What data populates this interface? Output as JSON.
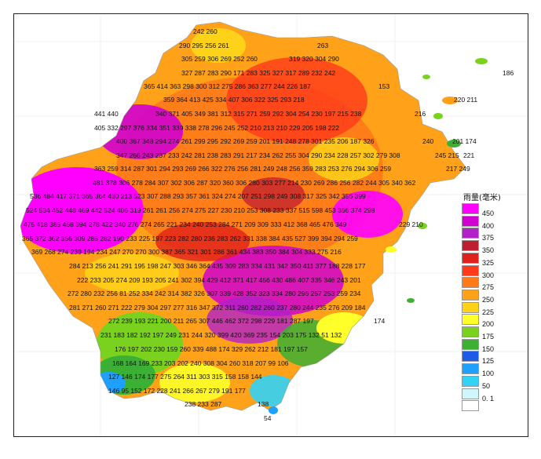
{
  "legend": {
    "title": "雨量(毫米)",
    "bins": [
      {
        "label": "450",
        "color": "#ff00ff"
      },
      {
        "label": "400",
        "color": "#d100d1"
      },
      {
        "label": "375",
        "color": "#b220c8"
      },
      {
        "label": "350",
        "color": "#bf1e2e"
      },
      {
        "label": "325",
        "color": "#e0201a"
      },
      {
        "label": "300",
        "color": "#ff3a1a"
      },
      {
        "label": "275",
        "color": "#ff7a1a"
      },
      {
        "label": "250",
        "color": "#ffa21a"
      },
      {
        "label": "225",
        "color": "#ffd21a"
      },
      {
        "label": "200",
        "color": "#ffff2a"
      },
      {
        "label": "175",
        "color": "#7ad11e"
      },
      {
        "label": "150",
        "color": "#3cb035"
      },
      {
        "label": "125",
        "color": "#1e5ae6"
      },
      {
        "label": "100",
        "color": "#1ea0ff"
      },
      {
        "label": "50",
        "color": "#32d2f5"
      },
      {
        "label": "0. 1",
        "color": "#cff7fb"
      },
      {
        "label": "",
        "color": "#ffffff"
      }
    ]
  },
  "stations": [
    "242 260",
    "290 295 256 261",
    "263",
    "305 259 306 269 252 260",
    "319 320 304 290",
    "327 287 283 290 171 283 325 327 317 289 232 242",
    "186",
    "365 414 363 298 300 312 275 286 363 277 244 226 187",
    "153",
    "359 364 413 425 334 407 306 322 325 293 218",
    "220 211",
    "441 440",
    "340 371 405 349 381 312 315 271 259 292 304 254 230 197 215 238",
    "216",
    "405 332 297 376 334 351 339 338 278 296 245 252 210 213 210 229 205 198 222",
    "400 367 348 294 274 261 299 295 292 269 259 201 191 248 278 301 235 206 187 326",
    "240",
    "201 174",
    "347 266 243 237 233 242 281 238 283 291 217 234 262 255 304 290 234 228 257 302 279 308",
    "245 215",
    "221",
    "363 259 314 287 301 294 293 269 266 322 276 256 281 249 248 256 359 283 253 276 294 306 259",
    "217 249",
    "481 378 306 278 284 307 302 306 287 320 360 306 280 303 277 214 230 269 286 256 282 244 305 340 362",
    "536 484 417 371 365 364 430 213 523 307 288 293 357 361 324 274 207 251 298 249 308 317 325 342 356 399",
    "524 534 452 448 469 442 524 406 319 261 261 256 274 275 227 230 210 253 308 233 337 515 598 453 366 374 298",
    "475 418 385 468 394 278 422 340 276 274 265 221 234 240 253 284 271 209 309 333 412 368 465 476 349",
    "229 210",
    "365 372 362 356 309 285 282 190 233 225 197 223 282 280 236 283 262 331 338 384 435 527 399 394 294 259",
    "369 268 274 239 194 234 247 270 270 300 387 365 321 301 286 361 434 383 350 384 304 333 275 216",
    "284 213 256 241 291 195 198 247 303 346 364 435 309 283 334 431 342 350 411 377 188 228 177",
    "222 233 205 274 209 193 205 241 302 394 429 412 371 417 456 430 486 407 335 346 243 201",
    "272 280 232 256 81 252 334 242 314 382 326 307 339 428 352 323 334 280 296 257 253 259 234",
    "281 271 260 271 222 279 304 297 277 316 347 372 311 260 282 260 237 280 244 235 276 209 184",
    "272 239 193 221 200 211 265 307 446 462 372 298 229 181 287 197",
    "174",
    "231 183 182 192 197 249 231 244 320 399 420 369 235 154 203 175 132 51 132",
    "176 197 202 230 159 260 339 488 174 329 262 212 181 197 157",
    "168 164 169 233 203 202 240 308 304 260 318 207 99 106",
    "127 146 174 177 275 264 311 303 315 158 158 144",
    "146 95 152 172 228 241 266 267 279 191 177",
    "238 233 287",
    "138",
    "54"
  ]
}
